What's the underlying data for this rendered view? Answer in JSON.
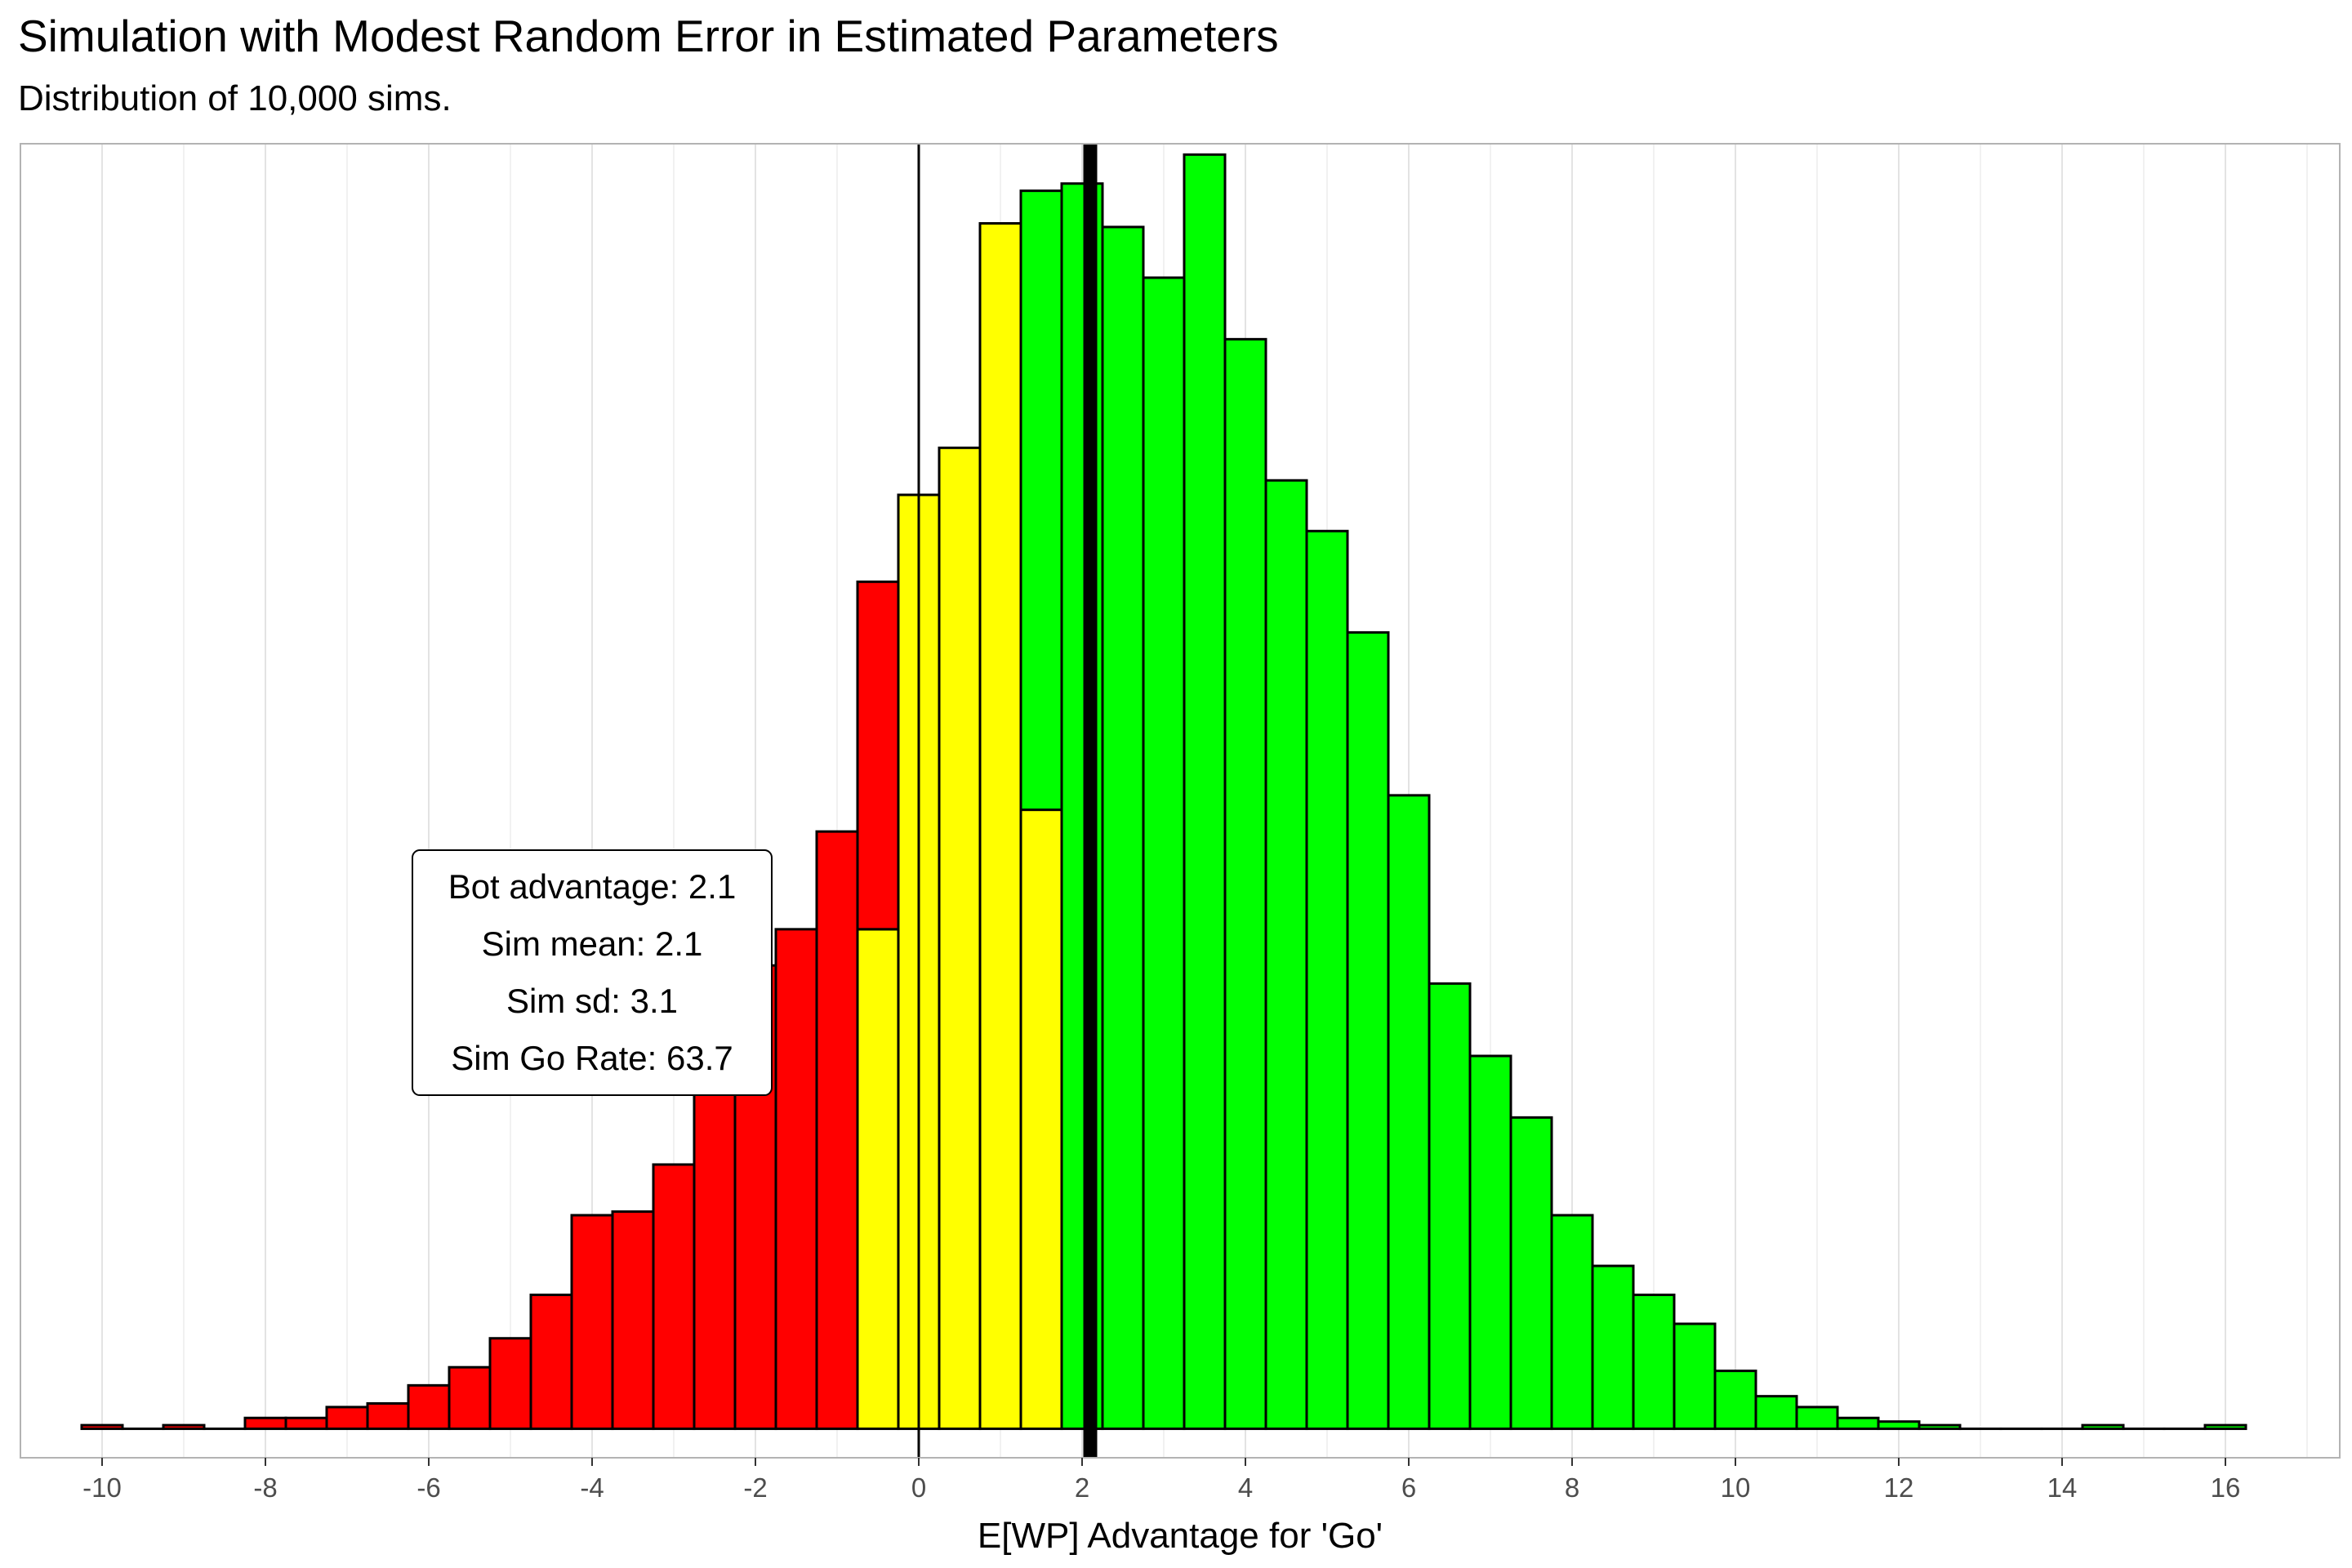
{
  "chart_data": {
    "type": "bar",
    "title": "Simulation with Modest Random Error in Estimated Parameters",
    "subtitle": "Distribution of 10,000 sims.",
    "xlabel": "E[WP] Advantage for 'Go'",
    "ylabel": "",
    "xlim": [
      -11,
      17.4
    ],
    "ylim": [
      -8,
      355
    ],
    "x_ticks": [
      -10,
      -8,
      -6,
      -4,
      -2,
      0,
      2,
      4,
      6,
      8,
      10,
      12,
      14,
      16
    ],
    "bin_width": 0.5,
    "grid": true,
    "colors": {
      "red": "#ff0000",
      "yellow": "#ffff00",
      "green": "#00ff00",
      "outline": "#000000",
      "grid": "#e3e3e3"
    },
    "bins": [
      {
        "x0": -10.25,
        "count": 1,
        "fill": "#ff0000"
      },
      {
        "x0": -9.75,
        "count": 0,
        "fill": "#ff0000"
      },
      {
        "x0": -9.25,
        "count": 1,
        "fill": "#ff0000"
      },
      {
        "x0": -8.75,
        "count": 0,
        "fill": "#ff0000"
      },
      {
        "x0": -8.25,
        "count": 3,
        "fill": "#ff0000"
      },
      {
        "x0": -7.75,
        "count": 3,
        "fill": "#ff0000"
      },
      {
        "x0": -7.25,
        "count": 6,
        "fill": "#ff0000"
      },
      {
        "x0": -6.75,
        "count": 7,
        "fill": "#ff0000"
      },
      {
        "x0": -6.25,
        "count": 12,
        "fill": "#ff0000"
      },
      {
        "x0": -5.75,
        "count": 17,
        "fill": "#ff0000"
      },
      {
        "x0": -5.25,
        "count": 25,
        "fill": "#ff0000"
      },
      {
        "x0": -4.75,
        "count": 37,
        "fill": "#ff0000"
      },
      {
        "x0": -4.25,
        "count": 59,
        "fill": "#ff0000"
      },
      {
        "x0": -3.75,
        "count": 60,
        "fill": "#ff0000"
      },
      {
        "x0": -3.25,
        "count": 73,
        "fill": "#ff0000"
      },
      {
        "x0": -2.75,
        "count": 96,
        "fill": "#ff0000"
      },
      {
        "x0": -2.25,
        "count": 128,
        "fill": "#ff0000"
      },
      {
        "x0": -1.75,
        "count": 138,
        "fill": "#ff0000"
      },
      {
        "x0": -1.25,
        "count": 165,
        "fill": "#ff0000"
      },
      {
        "x0": -0.75,
        "count": 138,
        "fill": "#ffff00"
      },
      {
        "x0": -0.75,
        "count": 234,
        "fill": "#ff0000",
        "stack_base": 138
      },
      {
        "x0": -0.25,
        "count": 258,
        "fill": "#ffff00"
      },
      {
        "x0": 0.25,
        "count": 271,
        "fill": "#ffff00"
      },
      {
        "x0": 0.75,
        "count": 333,
        "fill": "#ffff00"
      },
      {
        "x0": 1.25,
        "count": 171,
        "fill": "#ffff00"
      },
      {
        "x0": 1.25,
        "count": 342,
        "fill": "#00ff00",
        "stack_base": 171
      },
      {
        "x0": 1.75,
        "count": 344,
        "fill": "#00ff00"
      },
      {
        "x0": 2.25,
        "count": 332,
        "fill": "#00ff00"
      },
      {
        "x0": 2.75,
        "count": 318,
        "fill": "#00ff00"
      },
      {
        "x0": 3.25,
        "count": 352,
        "fill": "#00ff00"
      },
      {
        "x0": 3.75,
        "count": 301,
        "fill": "#00ff00"
      },
      {
        "x0": 4.25,
        "count": 262,
        "fill": "#00ff00"
      },
      {
        "x0": 4.75,
        "count": 248,
        "fill": "#00ff00"
      },
      {
        "x0": 5.25,
        "count": 220,
        "fill": "#00ff00"
      },
      {
        "x0": 5.75,
        "count": 175,
        "fill": "#00ff00"
      },
      {
        "x0": 6.25,
        "count": 123,
        "fill": "#00ff00"
      },
      {
        "x0": 6.75,
        "count": 103,
        "fill": "#00ff00"
      },
      {
        "x0": 7.25,
        "count": 86,
        "fill": "#00ff00"
      },
      {
        "x0": 7.75,
        "count": 59,
        "fill": "#00ff00"
      },
      {
        "x0": 8.25,
        "count": 45,
        "fill": "#00ff00"
      },
      {
        "x0": 8.75,
        "count": 37,
        "fill": "#00ff00"
      },
      {
        "x0": 9.25,
        "count": 29,
        "fill": "#00ff00"
      },
      {
        "x0": 9.75,
        "count": 16,
        "fill": "#00ff00"
      },
      {
        "x0": 10.25,
        "count": 9,
        "fill": "#00ff00"
      },
      {
        "x0": 10.75,
        "count": 6,
        "fill": "#00ff00"
      },
      {
        "x0": 11.25,
        "count": 3,
        "fill": "#00ff00"
      },
      {
        "x0": 11.75,
        "count": 2,
        "fill": "#00ff00"
      },
      {
        "x0": 12.25,
        "count": 1,
        "fill": "#00ff00"
      },
      {
        "x0": 12.75,
        "count": 0,
        "fill": "#00ff00"
      },
      {
        "x0": 13.25,
        "count": 0,
        "fill": "#00ff00"
      },
      {
        "x0": 13.75,
        "count": 0,
        "fill": "#00ff00"
      },
      {
        "x0": 14.25,
        "count": 1,
        "fill": "#00ff00"
      },
      {
        "x0": 14.75,
        "count": 0,
        "fill": "#00ff00"
      },
      {
        "x0": 15.25,
        "count": 0,
        "fill": "#00ff00"
      },
      {
        "x0": 15.75,
        "count": 1,
        "fill": "#00ff00"
      }
    ],
    "reference_lines": [
      {
        "x": 0,
        "weight": "thin"
      },
      {
        "x": 2.1,
        "weight": "thick"
      }
    ],
    "annotation": {
      "x": -4,
      "y": 126,
      "lines": [
        "Bot advantage: 2.1",
        "Sim mean: 2.1",
        "Sim sd: 3.1",
        "Sim Go Rate: 63.7"
      ]
    }
  }
}
